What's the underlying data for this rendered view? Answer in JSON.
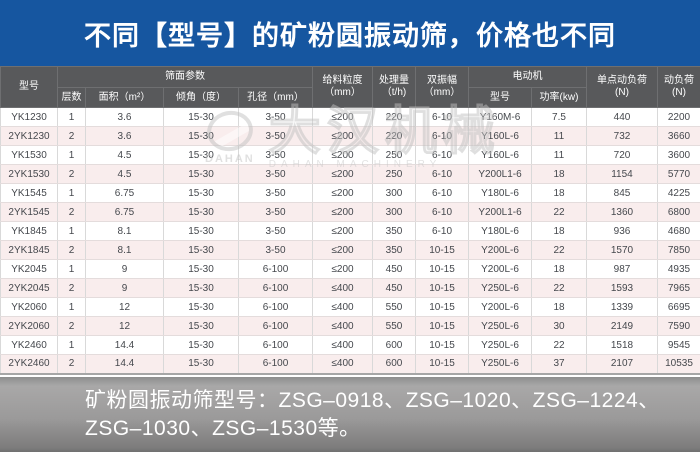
{
  "banner": {
    "title": "不同【型号】的矿粉圆振动筛，价格也不同"
  },
  "table": {
    "header": {
      "model": "型号",
      "screen_params": "筛面参数",
      "layers": "层数",
      "area": "面积（m²）",
      "incline": "倾角（度）",
      "aperture": "孔径（mm）",
      "feed_size_l1": "给料粒度",
      "feed_size_l2": "（mm）",
      "capacity_l1": "处理量",
      "capacity_l2": "（t/h)",
      "amplitude_l1": "双振幅",
      "amplitude_l2": "（mm）",
      "motor": "电动机",
      "motor_model": "型号",
      "power": "功率(kw)",
      "single_load_l1": "单点动负荷",
      "single_load_l2": "(N)",
      "dynamic_load_l1": "动负荷",
      "dynamic_load_l2": "(N)"
    },
    "rows": [
      [
        "YK1230",
        "1",
        "3.6",
        "15-30",
        "3-50",
        "≤200",
        "220",
        "6-10",
        "Y160M-6",
        "7.5",
        "440",
        "2200"
      ],
      [
        "2YK1230",
        "2",
        "3.6",
        "15-30",
        "3-50",
        "≤200",
        "220",
        "6-10",
        "Y160L-6",
        "11",
        "732",
        "3660"
      ],
      [
        "YK1530",
        "1",
        "4.5",
        "15-30",
        "3-50",
        "≤200",
        "250",
        "6-10",
        "Y160L-6",
        "11",
        "720",
        "3600"
      ],
      [
        "2YK1530",
        "2",
        "4.5",
        "15-30",
        "3-50",
        "≤200",
        "250",
        "6-10",
        "Y200L1-6",
        "18",
        "1154",
        "5770"
      ],
      [
        "YK1545",
        "1",
        "6.75",
        "15-30",
        "3-50",
        "≤200",
        "300",
        "6-10",
        "Y180L-6",
        "18",
        "845",
        "4225"
      ],
      [
        "2YK1545",
        "2",
        "6.75",
        "15-30",
        "3-50",
        "≤200",
        "300",
        "6-10",
        "Y200L1-6",
        "22",
        "1360",
        "6800"
      ],
      [
        "YK1845",
        "1",
        "8.1",
        "15-30",
        "3-50",
        "≤200",
        "350",
        "6-10",
        "Y180L-6",
        "18",
        "936",
        "4680"
      ],
      [
        "2YK1845",
        "2",
        "8.1",
        "15-30",
        "3-50",
        "≤200",
        "350",
        "10-15",
        "Y200L-6",
        "22",
        "1570",
        "7850"
      ],
      [
        "YK2045",
        "1",
        "9",
        "15-30",
        "6-100",
        "≤200",
        "450",
        "10-15",
        "Y200L-6",
        "18",
        "987",
        "4935"
      ],
      [
        "2YK2045",
        "2",
        "9",
        "15-30",
        "6-100",
        "≤400",
        "450",
        "10-15",
        "Y250L-6",
        "22",
        "1593",
        "7965"
      ],
      [
        "YK2060",
        "1",
        "12",
        "15-30",
        "6-100",
        "≤400",
        "550",
        "10-15",
        "Y200L-6",
        "18",
        "1339",
        "6695"
      ],
      [
        "2YK2060",
        "2",
        "12",
        "15-30",
        "6-100",
        "≤400",
        "550",
        "10-15",
        "Y250L-6",
        "30",
        "2149",
        "7590"
      ],
      [
        "YK2460",
        "1",
        "14.4",
        "15-30",
        "6-100",
        "≤400",
        "600",
        "10-15",
        "Y250L-6",
        "22",
        "1518",
        "9545"
      ],
      [
        "2YK2460",
        "2",
        "14.4",
        "15-30",
        "6-100",
        "≤400",
        "600",
        "10-15",
        "Y250L-6",
        "37",
        "2107",
        "10535"
      ]
    ]
  },
  "watermark": {
    "logo_caption": "DAHAN",
    "cn": "大汉机械",
    "en": "DAHAN MACHINERY"
  },
  "footer": {
    "line1": "矿粉圆振动筛型号：ZSG–0918、ZSG–1020、ZSG–1224、",
    "line2": "ZSG–1030、ZSG–1530等。"
  },
  "colors": {
    "banner_blue": "#1656a0",
    "header_gray": "#58595b",
    "row_stripe_pink": "#f9eded",
    "footer_gray": "#9b9a9a",
    "text_dark": "#45484d"
  }
}
